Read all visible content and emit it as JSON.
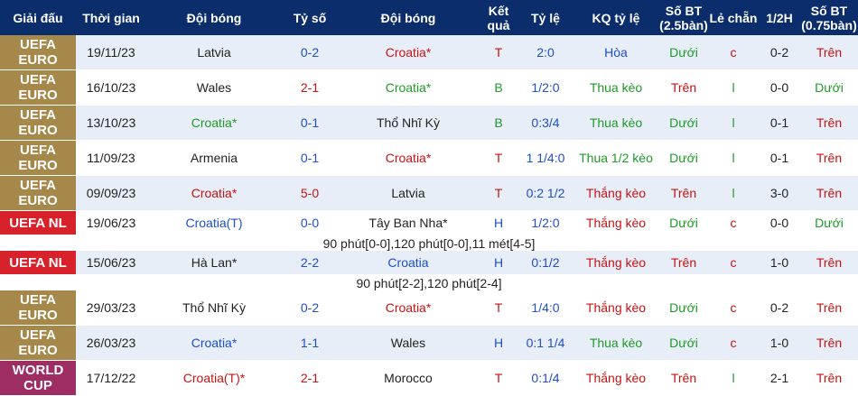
{
  "headers": {
    "league": "Giải đấu",
    "time": "Thời gian",
    "home": "Đội bóng",
    "score": "Tỷ số",
    "away": "Đội bóng",
    "result": "Kết quả",
    "ratio": "Tỷ lệ",
    "kq": "KQ tỷ lệ",
    "ou": "Số BT (2.5bàn)",
    "oe": "Lẻ chẵn",
    "half": "1/2H",
    "ou2": "Số BT (0.75bàn)"
  },
  "rows": [
    {
      "league": "UEFA EURO",
      "date": "19/11/23",
      "home": "Latvia",
      "score": "0-2",
      "away": "Croatia*",
      "result": "T",
      "ratio": "2:0",
      "kq": "Hòa",
      "ou": "Dưới",
      "oe": "c",
      "half": "0-2",
      "ou2": "Trên"
    },
    {
      "league": "UEFA EURO",
      "date": "16/10/23",
      "home": "Wales",
      "score": "2-1",
      "away": "Croatia*",
      "result": "B",
      "ratio": "1/2:0",
      "kq": "Thua kèo",
      "ou": "Trên",
      "oe": "l",
      "half": "0-0",
      "ou2": "Dưới"
    },
    {
      "league": "UEFA EURO",
      "date": "13/10/23",
      "home": "Croatia*",
      "score": "0-1",
      "away": "Thổ Nhĩ Kỳ",
      "result": "B",
      "ratio": "0:3/4",
      "kq": "Thua kèo",
      "ou": "Dưới",
      "oe": "l",
      "half": "0-1",
      "ou2": "Trên"
    },
    {
      "league": "UEFA EURO",
      "date": "11/09/23",
      "home": "Armenia",
      "score": "0-1",
      "away": "Croatia*",
      "result": "T",
      "ratio": "1 1/4:0",
      "kq": "Thua 1/2 kèo",
      "ou": "Dưới",
      "oe": "l",
      "half": "0-1",
      "ou2": "Trên"
    },
    {
      "league": "UEFA EURO",
      "date": "09/09/23",
      "home": "Croatia*",
      "score": "5-0",
      "away": "Latvia",
      "result": "T",
      "ratio": "0:2 1/2",
      "kq": "Thắng kèo",
      "ou": "Trên",
      "oe": "l",
      "half": "3-0",
      "ou2": "Trên"
    },
    {
      "league": "UEFA NL",
      "date": "19/06/23",
      "home": "Croatia(T)",
      "score": "0-0",
      "away": "Tây Ban Nha*",
      "result": "H",
      "ratio": "1/2:0",
      "kq": "Thắng kèo",
      "ou": "Dưới",
      "oe": "c",
      "half": "0-0",
      "ou2": "Dưới"
    },
    {
      "league": "UEFA NL",
      "date": "15/06/23",
      "home": "Hà Lan*",
      "score": "2-2",
      "away": "Croatia",
      "result": "H",
      "ratio": "0:1/2",
      "kq": "Thắng kèo",
      "ou": "Trên",
      "oe": "c",
      "half": "1-0",
      "ou2": "Trên"
    },
    {
      "league": "UEFA EURO",
      "date": "29/03/23",
      "home": "Thổ Nhĩ Kỳ",
      "score": "0-2",
      "away": "Croatia*",
      "result": "T",
      "ratio": "1/4:0",
      "kq": "Thắng kèo",
      "ou": "Dưới",
      "oe": "c",
      "half": "0-2",
      "ou2": "Trên"
    },
    {
      "league": "UEFA EURO",
      "date": "26/03/23",
      "home": "Croatia*",
      "score": "1-1",
      "away": "Wales",
      "result": "H",
      "ratio": "0:1 1/4",
      "kq": "Thua kèo",
      "ou": "Dưới",
      "oe": "c",
      "half": "1-0",
      "ou2": "Trên"
    },
    {
      "league": "WORLD CUP",
      "date": "17/12/22",
      "home": "Croatia(T)*",
      "score": "2-1",
      "away": "Morocco",
      "result": "T",
      "ratio": "0:1/4",
      "kq": "Thắng kèo",
      "ou": "Trên",
      "oe": "l",
      "half": "2-1",
      "ou2": "Trên"
    }
  ],
  "notes": {
    "after_nl1": "90 phút[0-0],120 phút[0-0],11 mét[4-5]",
    "after_nl2": "90 phút[2-2],120 phút[2-4]"
  }
}
